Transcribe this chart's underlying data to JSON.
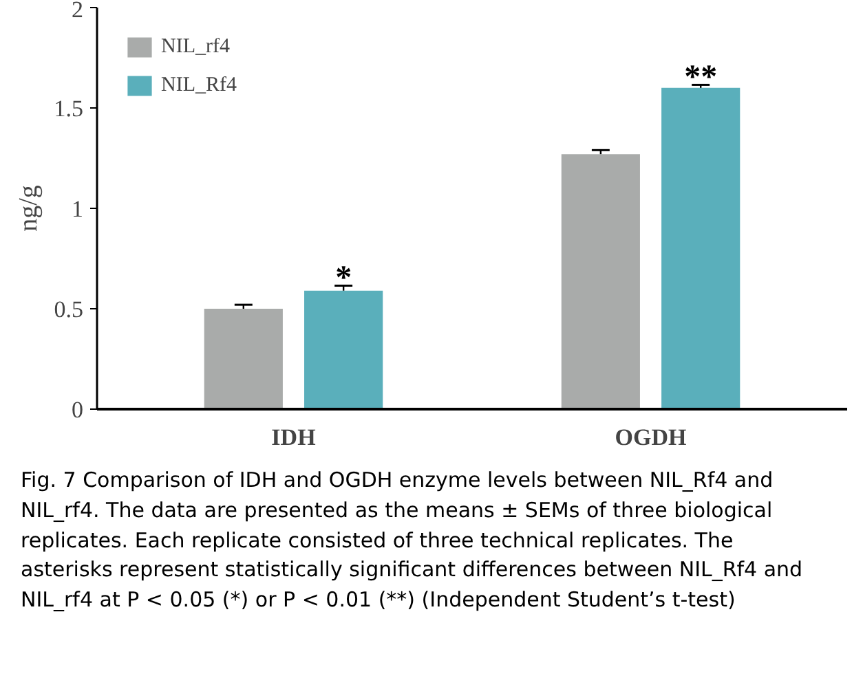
{
  "chart_data": {
    "type": "bar",
    "categories": [
      "IDH",
      "OGDH"
    ],
    "ylabel": "ng/g",
    "ylim": [
      0,
      2
    ],
    "yticks": [
      0,
      0.5,
      1,
      1.5,
      2
    ],
    "grid": false,
    "legend": "top left",
    "series": [
      {
        "name": "NIL_rf4",
        "color": "#a9abaa",
        "values": [
          0.5,
          1.27
        ],
        "errors": [
          [
            0.5,
            0.52
          ],
          [
            1.27,
            1.29
          ]
        ]
      },
      {
        "name": "NIL_Rf4",
        "color": "#5aafbb",
        "values": [
          0.59,
          1.6
        ],
        "errors": [
          [
            0.59,
            0.615
          ],
          [
            1.6,
            1.615
          ]
        ]
      }
    ],
    "annotations": [
      "*",
      "**",
      "Fig. 7 Comparison of IDH and OGDH enzyme levels between NIL_Rf4 and NIL_rf4. The data are presented as the means ± SEMs of three biological replicates. Each replicate consisted of three technical replicates. The asterisks represent statistically significant differences between NIL_Rf4 and NIL_rf4 at P < 0.05 (*) or P < 0.01 (**) (Independent Student’s t-test)"
    ]
  }
}
